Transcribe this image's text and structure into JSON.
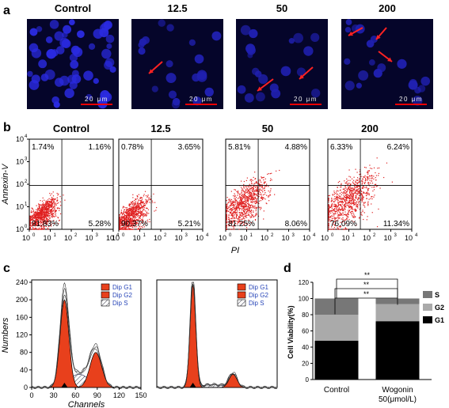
{
  "panel_a": {
    "label": "a",
    "images": [
      {
        "title": "Control",
        "scale_bar": "20 μm"
      },
      {
        "title": "12.5",
        "scale_bar": "20 μm"
      },
      {
        "title": "50",
        "scale_bar": "20 μm"
      },
      {
        "title": "200",
        "scale_bar": "20 μm"
      }
    ]
  },
  "panel_b": {
    "label": "b",
    "y_label": "Annexin-V",
    "x_label": "PI",
    "tick_base": "10",
    "tick_exponents": [
      "0",
      "1",
      "2",
      "3",
      "4"
    ],
    "plots": [
      {
        "title": "Control",
        "quadrants": {
          "ul": "1.74%",
          "ur": "1.16%",
          "ll": "91.83%",
          "lr": "5.28%"
        }
      },
      {
        "title": "12.5",
        "quadrants": {
          "ul": "0.78%",
          "ur": "3.65%",
          "ll": "90.37%",
          "lr": "5.21%"
        }
      },
      {
        "title": "50",
        "quadrants": {
          "ul": "5.81%",
          "ur": "4.88%",
          "ll": "81.25%",
          "lr": "8.06%"
        }
      },
      {
        "title": "200",
        "quadrants": {
          "ul": "6.33%",
          "ur": "6.24%",
          "ll": "76.09%",
          "lr": "11.34%"
        }
      }
    ]
  },
  "panel_c": {
    "label": "c",
    "y_label": "Numbers",
    "x_label": "Channels",
    "xlim": [
      0,
      150
    ],
    "ylim": [
      0,
      240
    ],
    "xticks": [
      0,
      30,
      60,
      90,
      120,
      150
    ],
    "yticks": [
      0,
      40,
      80,
      120,
      160,
      200,
      240
    ],
    "legend": [
      "Dip G1",
      "Dip G2",
      "Dip S"
    ]
  },
  "chart_data": {
    "type": "bar",
    "stacked": true,
    "label": "d",
    "y_label": "Cell Viability(%)",
    "categories": [
      "Control",
      "Wogonin 50(μmol/L)"
    ],
    "series": [
      {
        "name": "G1",
        "color": "#000000",
        "values": [
          48,
          72
        ]
      },
      {
        "name": "G2",
        "color": "#aaaaaa",
        "values": [
          32,
          21
        ]
      },
      {
        "name": "S",
        "color": "#777777",
        "values": [
          20,
          7
        ]
      }
    ],
    "ylim": [
      0,
      120
    ],
    "yticks": [
      0,
      20,
      40,
      60,
      80,
      100,
      120
    ],
    "annotations": [
      "**",
      "**",
      "**"
    ],
    "legend": "right"
  }
}
